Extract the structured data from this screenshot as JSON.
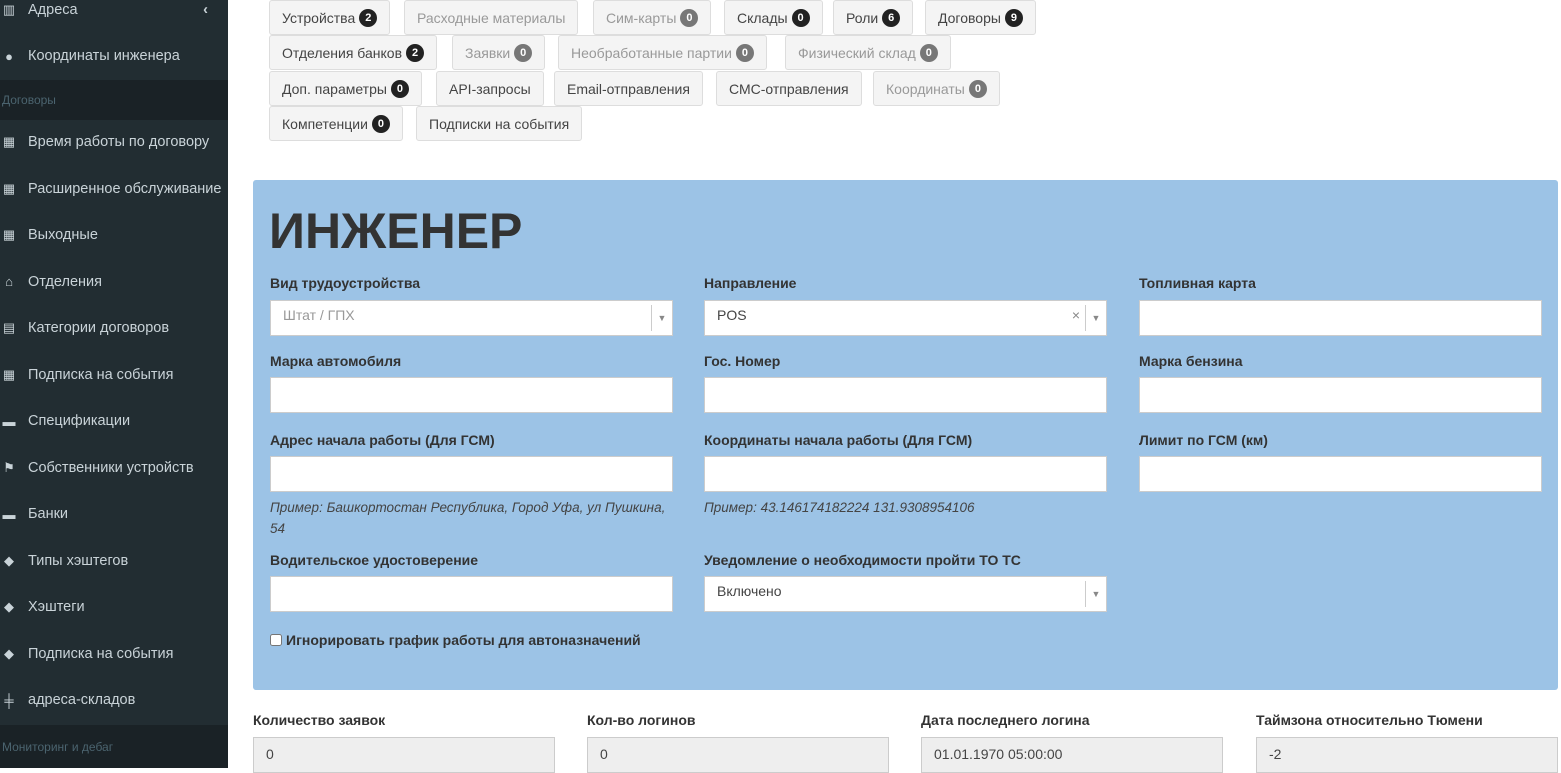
{
  "sidebar": {
    "items": [
      {
        "label": "Адреса",
        "icon": "map-icon"
      },
      {
        "label": "Координаты инженера",
        "icon": "map-marker-icon"
      }
    ],
    "section_contracts": "Договоры",
    "contract_items": [
      {
        "label": "Время работы по договору",
        "icon": "calendar-icon"
      },
      {
        "label": "Расширенное обслуживание",
        "icon": "calendar-icon"
      },
      {
        "label": "Выходные",
        "icon": "calendar-icon"
      },
      {
        "label": "Отделения",
        "icon": "bank-icon"
      },
      {
        "label": "Категории договоров",
        "icon": "file-icon"
      },
      {
        "label": "Подписка на события",
        "icon": "calendar-icon"
      },
      {
        "label": "Спецификации",
        "icon": "archive-icon"
      },
      {
        "label": "Собственники устройств",
        "icon": "flag-icon"
      },
      {
        "label": "Банки",
        "icon": "archive-icon"
      },
      {
        "label": "Типы хэштегов",
        "icon": "tag-icon"
      },
      {
        "label": "Хэштеги",
        "icon": "tag-icon"
      },
      {
        "label": "Подписка на события",
        "icon": "tag-icon"
      },
      {
        "label": "адреса-складов",
        "icon": "signpost-icon"
      }
    ],
    "section_monitoring": "Мониторинг и дебаг"
  },
  "tabs": [
    {
      "label": "Устройства",
      "badge": "2",
      "disabled": false
    },
    {
      "label": "Расходные материалы",
      "badge": null,
      "disabled": true
    },
    {
      "label": "Сим-карты",
      "badge": "0",
      "disabled": true
    },
    {
      "label": "Склады",
      "badge": "0",
      "disabled": false
    },
    {
      "label": "Роли",
      "badge": "6",
      "disabled": false
    },
    {
      "label": "Договоры",
      "badge": "9",
      "disabled": false
    },
    {
      "label": "Отделения банков",
      "badge": "2",
      "disabled": false
    },
    {
      "label": "Заявки",
      "badge": "0",
      "disabled": true
    },
    {
      "label": "Необработанные партии",
      "badge": "0",
      "disabled": true
    },
    {
      "label": "Физический склад",
      "badge": "0",
      "disabled": true
    },
    {
      "label": "Доп. параметры",
      "badge": "0",
      "disabled": false
    },
    {
      "label": "API-запросы",
      "badge": null,
      "disabled": false
    },
    {
      "label": "Email-отправления",
      "badge": null,
      "disabled": false
    },
    {
      "label": "СМС-отправления",
      "badge": null,
      "disabled": false
    },
    {
      "label": "Координаты",
      "badge": "0",
      "disabled": true
    },
    {
      "label": "Компетенции",
      "badge": "0",
      "disabled": false
    },
    {
      "label": "Подписки на события",
      "badge": null,
      "disabled": false
    }
  ],
  "form": {
    "title": "ИНЖЕНЕР",
    "employment_type": {
      "label": "Вид трудоустройства",
      "placeholder": "Штат / ГПХ"
    },
    "direction": {
      "label": "Направление",
      "value": "POS"
    },
    "fuel_card": {
      "label": "Топливная карта",
      "value": ""
    },
    "car_brand": {
      "label": "Марка автомобиля",
      "value": ""
    },
    "plate": {
      "label": "Гос. Номер",
      "value": ""
    },
    "fuel_brand": {
      "label": "Марка бензина",
      "value": ""
    },
    "start_address": {
      "label": "Адрес начала работы (Для ГСМ)",
      "value": "",
      "hint": "Пример: Башкортостан Республика, Город Уфа, ул Пушкина, 54"
    },
    "start_coords": {
      "label": "Координаты начала работы (Для ГСМ)",
      "value": "",
      "hint": "Пример: 43.146174182224 131.9308954106"
    },
    "fuel_limit": {
      "label": "Лимит по ГСМ (км)",
      "value": ""
    },
    "license": {
      "label": "Водительское удостоверение",
      "value": ""
    },
    "inspection_notice": {
      "label": "Уведомление о необходимости пройти ТО ТС",
      "value": "Включено"
    },
    "ignore_schedule": {
      "label": "Игнорировать график работы для автоназначений",
      "checked": false
    }
  },
  "stats": [
    {
      "label": "Количество заявок",
      "value": "0"
    },
    {
      "label": "Кол-во логинов",
      "value": "0"
    },
    {
      "label": "Дата последнего логина",
      "value": "01.01.1970 05:00:00"
    },
    {
      "label": "Таймзона относительно Тюмени",
      "value": "-2"
    }
  ]
}
